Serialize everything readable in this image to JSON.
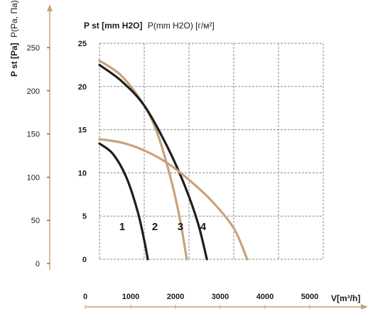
{
  "chart_data": {
    "type": "line",
    "y_label_left": {
      "bold": "P st [Pa]",
      "rest": "P(Pa, Па)"
    },
    "y_label_top": {
      "bold": "P st [mm H2O]",
      "rest": "P(mm H2O) [г/м²]"
    },
    "x_label": "V[m³/h]",
    "x_ticks": [
      "0",
      "1000",
      "2000",
      "3000",
      "4000",
      "5000"
    ],
    "y_ticks_pa": [
      "0",
      "50",
      "100",
      "150",
      "200",
      "250"
    ],
    "y_ticks_mm": [
      "0",
      "5",
      "10",
      "15",
      "20",
      "25"
    ],
    "xlim": [
      0,
      5000
    ],
    "ylim_mm": [
      0,
      25
    ],
    "grid": true,
    "series": [
      {
        "name": "1",
        "color": "#1f1f1f",
        "x": [
          0,
          300,
          600,
          850,
          1000,
          1080
        ],
        "y": [
          13.4,
          12.2,
          9.5,
          5.6,
          2.2,
          0
        ]
      },
      {
        "name": "2",
        "color": "#c8a27a",
        "x": [
          0,
          500,
          1000,
          1300,
          1600,
          1800,
          1950
        ],
        "y": [
          23.0,
          21.2,
          17.8,
          14.5,
          9.2,
          4.6,
          0
        ]
      },
      {
        "name": "3",
        "color": "#1f1f1f",
        "x": [
          0,
          500,
          1000,
          1500,
          1900,
          2200,
          2400
        ],
        "y": [
          22.5,
          20.6,
          17.8,
          13.2,
          8.6,
          4.2,
          0
        ]
      },
      {
        "name": "4",
        "color": "#c8a27a",
        "x": [
          0,
          500,
          1000,
          1500,
          2000,
          2500,
          3000,
          3300
        ],
        "y": [
          13.9,
          13.5,
          12.6,
          11.2,
          9.2,
          6.8,
          3.6,
          0
        ]
      }
    ]
  }
}
